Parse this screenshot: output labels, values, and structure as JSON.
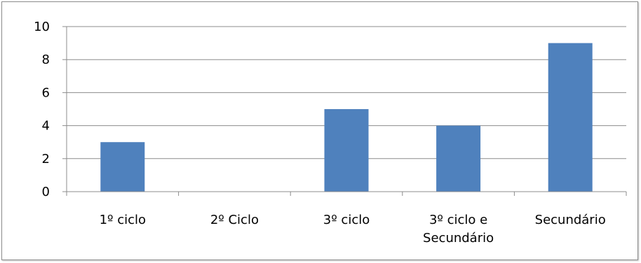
{
  "chart_data": {
    "type": "bar",
    "categories": [
      [
        "1º ciclo"
      ],
      [
        "2º Ciclo"
      ],
      [
        "3º ciclo"
      ],
      [
        "3º ciclo e",
        "Secundário"
      ],
      [
        "Secundário"
      ]
    ],
    "values": [
      3,
      0,
      5,
      4,
      9
    ],
    "ylim": [
      0,
      10
    ],
    "yticks": [
      0,
      2,
      4,
      6,
      8,
      10
    ],
    "grid": true,
    "legend": "none",
    "colors": {
      "bar": "#4f81bd",
      "grid": "#8c8c8c",
      "axis": "#8c8c8c"
    }
  }
}
